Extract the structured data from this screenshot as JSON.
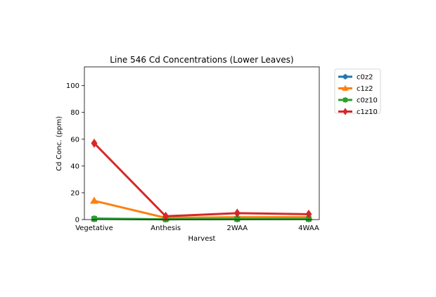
{
  "chart_data": {
    "type": "line",
    "title": "Line 546 Cd Concentrations (Lower Leaves)",
    "xlabel": "Harvest",
    "ylabel": "Cd Conc. (ppm)",
    "categories": [
      "Vegetative",
      "Anthesis",
      "2WAA",
      "4WAA"
    ],
    "ylim": [
      0,
      114
    ],
    "yticks": [
      0,
      20,
      40,
      60,
      80,
      100
    ],
    "grid": false,
    "legend_position": "outside upper right",
    "series": [
      {
        "name": "c0z2",
        "color": "#1f77b4",
        "marker": "circle",
        "values": [
          0.8,
          0.2,
          0.4,
          0.5
        ]
      },
      {
        "name": "c1z2",
        "color": "#ff7f0e",
        "marker": "triangle-up",
        "values": [
          14,
          1.3,
          1.8,
          1.8
        ]
      },
      {
        "name": "c0z10",
        "color": "#2ca02c",
        "marker": "square",
        "values": [
          0.5,
          0.2,
          0.4,
          0.4
        ]
      },
      {
        "name": "c1z10",
        "color": "#d62728",
        "marker": "thin-diamond",
        "values": [
          57,
          2.5,
          4.8,
          4.0
        ]
      }
    ]
  }
}
